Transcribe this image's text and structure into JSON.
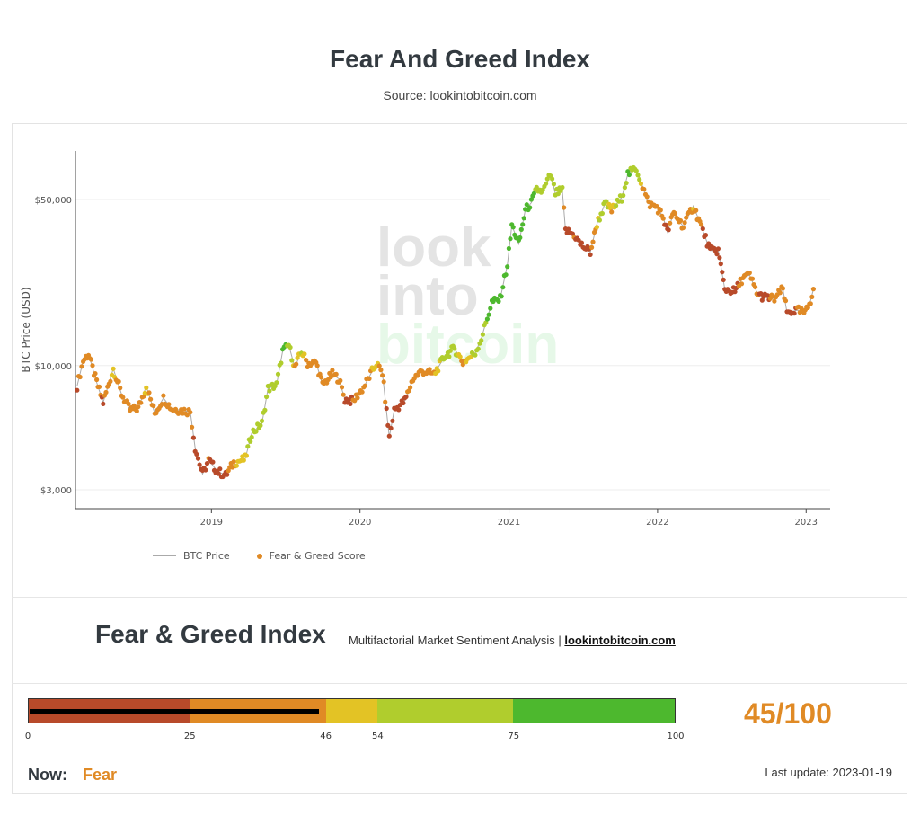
{
  "header": {
    "title": "Fear And Greed Index",
    "subtitle": "Source: lookintobitcoin.com"
  },
  "watermark": [
    "look",
    "into",
    "bitcoin"
  ],
  "colors": {
    "extreme_fear": "#b84a2a",
    "fear": "#e08a25",
    "neutral": "#e3c325",
    "greed": "#b0cd2d",
    "extreme_greed": "#4db82e"
  },
  "chart_data": {
    "type": "scatter",
    "title": "",
    "xlabel": "",
    "ylabel": "BTC Price (USD)",
    "y_scale": "log",
    "ylim": [
      2500,
      80000
    ],
    "xlim": [
      "2018-02-01",
      "2023-03-01"
    ],
    "y_ticks": [
      {
        "value": 3000,
        "label": "$3,000"
      },
      {
        "value": 10000,
        "label": "$10,000"
      },
      {
        "value": 50000,
        "label": "$50,000"
      }
    ],
    "x_ticks": [
      {
        "value": "2019-01-01",
        "label": "2019"
      },
      {
        "value": "2020-01-01",
        "label": "2020"
      },
      {
        "value": "2021-01-01",
        "label": "2021"
      },
      {
        "value": "2022-01-01",
        "label": "2022"
      },
      {
        "value": "2023-01-01",
        "label": "2023"
      }
    ],
    "grid": true,
    "legend_position": "bottom-left",
    "series": [
      {
        "name": "BTC Price",
        "kind": "line",
        "color": "#aaaaaa"
      },
      {
        "name": "Fear & Greed Score",
        "kind": "scatter",
        "color": "#e08a25",
        "points": [
          [
            "2018-02-05",
            8200,
            20
          ],
          [
            "2018-02-20",
            10500,
            40
          ],
          [
            "2018-03-05",
            11200,
            45
          ],
          [
            "2018-03-25",
            8500,
            30
          ],
          [
            "2018-04-10",
            7000,
            22
          ],
          [
            "2018-05-05",
            9700,
            50
          ],
          [
            "2018-05-25",
            7600,
            35
          ],
          [
            "2018-06-15",
            6500,
            28
          ],
          [
            "2018-07-05",
            6600,
            30
          ],
          [
            "2018-07-25",
            8200,
            52
          ],
          [
            "2018-08-15",
            6300,
            32
          ],
          [
            "2018-09-05",
            7300,
            40
          ],
          [
            "2018-09-25",
            6600,
            35
          ],
          [
            "2018-10-15",
            6500,
            33
          ],
          [
            "2018-11-10",
            6400,
            35
          ],
          [
            "2018-11-22",
            4500,
            15
          ],
          [
            "2018-12-10",
            3500,
            10
          ],
          [
            "2018-12-25",
            4000,
            25
          ],
          [
            "2019-01-15",
            3600,
            22
          ],
          [
            "2019-02-05",
            3450,
            20
          ],
          [
            "2019-02-25",
            3900,
            45
          ],
          [
            "2019-03-25",
            4050,
            50
          ],
          [
            "2019-04-10",
            5200,
            62
          ],
          [
            "2019-05-05",
            5700,
            63
          ],
          [
            "2019-05-20",
            8000,
            68
          ],
          [
            "2019-06-10",
            8300,
            63
          ],
          [
            "2019-06-25",
            11500,
            78
          ],
          [
            "2019-07-10",
            12200,
            72
          ],
          [
            "2019-07-25",
            9800,
            40
          ],
          [
            "2019-08-10",
            11500,
            55
          ],
          [
            "2019-08-25",
            10200,
            40
          ],
          [
            "2019-09-15",
            10300,
            42
          ],
          [
            "2019-10-01",
            8300,
            30
          ],
          [
            "2019-10-25",
            9200,
            42
          ],
          [
            "2019-11-10",
            8800,
            35
          ],
          [
            "2019-11-25",
            7200,
            22
          ],
          [
            "2019-12-15",
            7100,
            25
          ],
          [
            "2020-01-10",
            8100,
            38
          ],
          [
            "2020-02-10",
            10200,
            50
          ],
          [
            "2020-02-25",
            9300,
            40
          ],
          [
            "2020-03-13",
            5000,
            10
          ],
          [
            "2020-03-25",
            6500,
            15
          ],
          [
            "2020-04-20",
            7100,
            22
          ],
          [
            "2020-05-10",
            8800,
            38
          ],
          [
            "2020-06-01",
            9500,
            45
          ],
          [
            "2020-07-01",
            9200,
            45
          ],
          [
            "2020-07-28",
            11000,
            62
          ],
          [
            "2020-08-20",
            11800,
            65
          ],
          [
            "2020-09-10",
            10300,
            42
          ],
          [
            "2020-10-10",
            11300,
            58
          ],
          [
            "2020-10-25",
            13000,
            70
          ],
          [
            "2020-11-20",
            18500,
            80
          ],
          [
            "2020-12-10",
            19000,
            82
          ],
          [
            "2020-12-28",
            26500,
            85
          ],
          [
            "2021-01-08",
            39000,
            88
          ],
          [
            "2021-01-25",
            32500,
            76
          ],
          [
            "2021-02-10",
            45000,
            90
          ],
          [
            "2021-02-25",
            48500,
            82
          ],
          [
            "2021-03-10",
            55000,
            72
          ],
          [
            "2021-03-25",
            54000,
            60
          ],
          [
            "2021-04-13",
            63500,
            70
          ],
          [
            "2021-04-25",
            53000,
            55
          ],
          [
            "2021-05-12",
            54500,
            66
          ],
          [
            "2021-05-20",
            37000,
            20
          ],
          [
            "2021-06-10",
            35500,
            25
          ],
          [
            "2021-06-25",
            32500,
            22
          ],
          [
            "2021-07-20",
            30000,
            20
          ],
          [
            "2021-08-05",
            39500,
            50
          ],
          [
            "2021-08-25",
            48000,
            62
          ],
          [
            "2021-09-10",
            45000,
            45
          ],
          [
            "2021-10-05",
            51000,
            70
          ],
          [
            "2021-10-20",
            64000,
            76
          ],
          [
            "2021-11-10",
            67500,
            72
          ],
          [
            "2021-11-25",
            57000,
            40
          ],
          [
            "2021-12-10",
            48000,
            28
          ],
          [
            "2021-12-30",
            46500,
            30
          ],
          [
            "2022-01-15",
            42000,
            25
          ],
          [
            "2022-01-25",
            36500,
            18
          ],
          [
            "2022-02-10",
            44000,
            40
          ],
          [
            "2022-03-05",
            38500,
            28
          ],
          [
            "2022-03-30",
            47000,
            48
          ],
          [
            "2022-04-15",
            40000,
            30
          ],
          [
            "2022-05-10",
            30500,
            12
          ],
          [
            "2022-05-30",
            30500,
            15
          ],
          [
            "2022-06-15",
            21000,
            10
          ],
          [
            "2022-07-10",
            20500,
            18
          ],
          [
            "2022-07-30",
            23500,
            38
          ],
          [
            "2022-08-15",
            24000,
            45
          ],
          [
            "2022-09-05",
            19800,
            25
          ],
          [
            "2022-09-25",
            19300,
            22
          ],
          [
            "2022-10-15",
            19100,
            28
          ],
          [
            "2022-11-05",
            21000,
            35
          ],
          [
            "2022-11-15",
            16700,
            20
          ],
          [
            "2022-12-10",
            17100,
            25
          ],
          [
            "2022-12-30",
            16600,
            28
          ],
          [
            "2023-01-12",
            18800,
            40
          ],
          [
            "2023-01-19",
            21000,
            45
          ]
        ]
      }
    ],
    "legend": [
      {
        "label": "BTC Price",
        "kind": "line"
      },
      {
        "label": "Fear & Greed Score",
        "kind": "dot"
      }
    ]
  },
  "index_panel": {
    "heading": "Fear & Greed Index",
    "tagline": "Multifactorial Market Sentiment Analysis |",
    "link_text": "lookintobitcoin.com"
  },
  "gauge": {
    "value": 45,
    "max": 100,
    "score_text": "45/100",
    "segments": [
      {
        "from": 0,
        "to": 25,
        "color": "#b84a2a"
      },
      {
        "from": 25,
        "to": 46,
        "color": "#e08a25"
      },
      {
        "from": 46,
        "to": 54,
        "color": "#e3c325"
      },
      {
        "from": 54,
        "to": 75,
        "color": "#b0cd2d"
      },
      {
        "from": 75,
        "to": 100,
        "color": "#4db82e"
      }
    ],
    "tick_labels": [
      "0",
      "25",
      "46",
      "54",
      "75",
      "100"
    ]
  },
  "status": {
    "now_label": "Now:",
    "now_value": "Fear",
    "last_update": "Last update: 2023-01-19"
  }
}
